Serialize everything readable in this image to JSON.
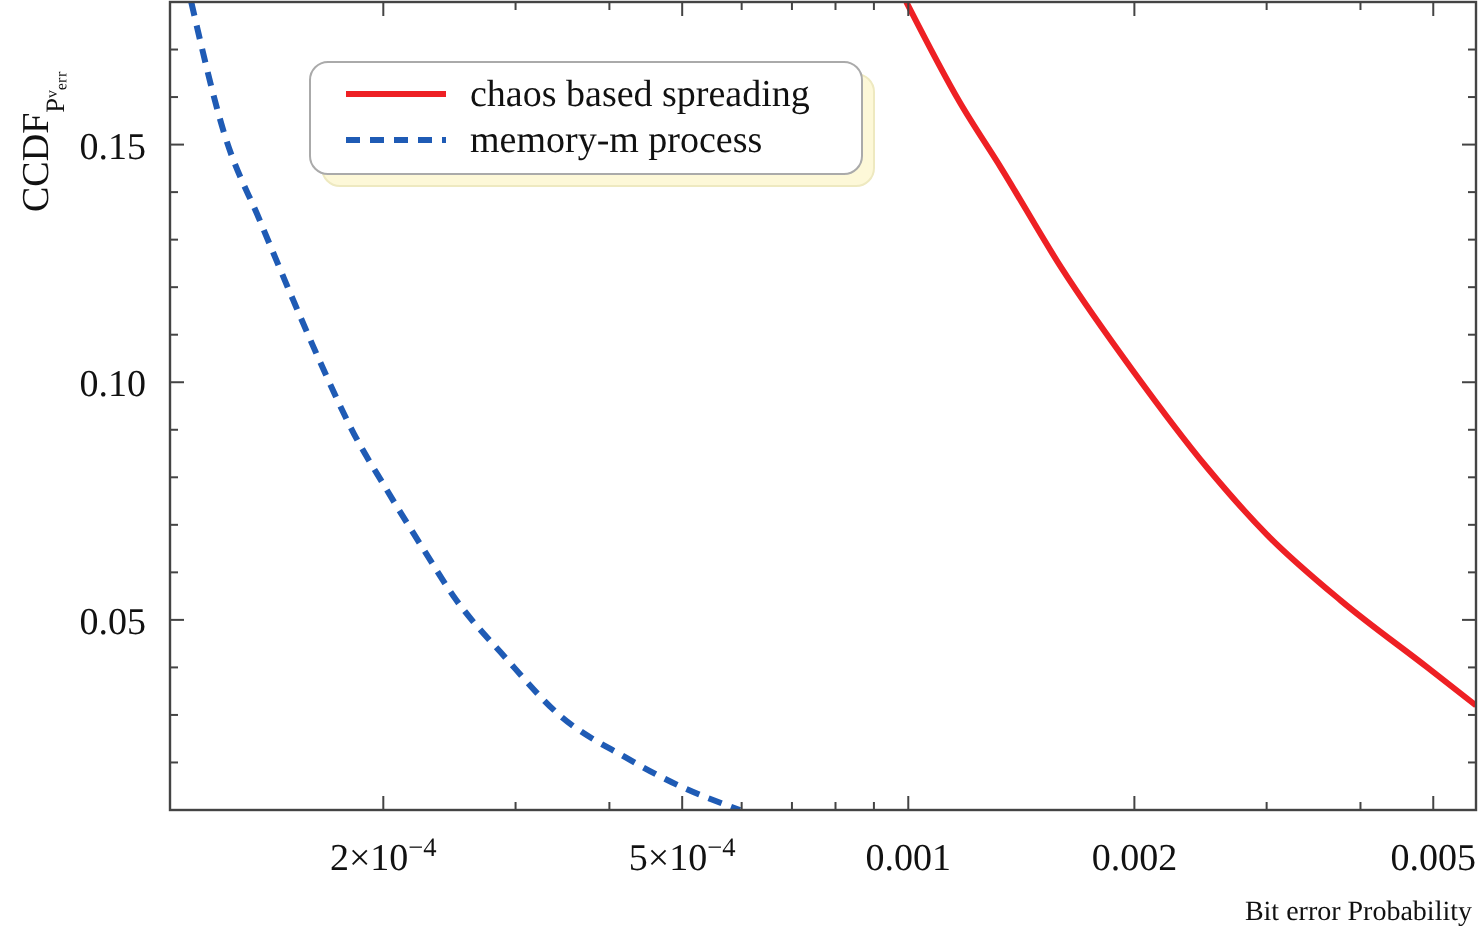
{
  "chart_data": {
    "type": "line",
    "xlabel": "Bit error Probability",
    "ylabel": "CCDF$_{Pᵛₑᵣᵣ}$",
    "log": "x",
    "xlim": [
      0.000104,
      0.0057
    ],
    "ylim": [
      0.01,
      0.18
    ],
    "xticks": [
      {
        "value": 0.0002,
        "label": "2×10$^{−4}$"
      },
      {
        "value": 0.0003,
        "label": null
      },
      {
        "value": 0.0004,
        "label": null
      },
      {
        "value": 0.0005,
        "label": "5×10$^{−4}$"
      },
      {
        "value": 0.0006,
        "label": null
      },
      {
        "value": 0.0007,
        "label": null
      },
      {
        "value": 0.0008,
        "label": null
      },
      {
        "value": 0.0009,
        "label": null
      },
      {
        "value": 0.001,
        "label": "0.001"
      },
      {
        "value": 0.002,
        "label": "0.002"
      },
      {
        "value": 0.003,
        "label": null
      },
      {
        "value": 0.004,
        "label": null
      },
      {
        "value": 0.005,
        "label": "0.005"
      }
    ],
    "yticks": [
      {
        "value": 0.02,
        "label": null
      },
      {
        "value": 0.03,
        "label": null
      },
      {
        "value": 0.04,
        "label": null
      },
      {
        "value": 0.05,
        "label": "0.05"
      },
      {
        "value": 0.06,
        "label": null
      },
      {
        "value": 0.07,
        "label": null
      },
      {
        "value": 0.08,
        "label": null
      },
      {
        "value": 0.09,
        "label": null
      },
      {
        "value": 0.1,
        "label": "0.10"
      },
      {
        "value": 0.11,
        "label": null
      },
      {
        "value": 0.12,
        "label": null
      },
      {
        "value": 0.13,
        "label": null
      },
      {
        "value": 0.14,
        "label": null
      },
      {
        "value": 0.15,
        "label": "0.15"
      },
      {
        "value": 0.16,
        "label": null
      },
      {
        "value": 0.17,
        "label": null
      }
    ],
    "grid": false,
    "legend": "top left",
    "series": [
      {
        "name": "chaos based spreading",
        "color": "#ee2024",
        "line_style": "solid",
        "x": [
          0.000994,
          0.00117,
          0.00133,
          0.0016,
          0.002,
          0.0025,
          0.003,
          0.00377,
          0.00491,
          0.0057
        ],
        "values": [
          0.18,
          0.159,
          0.145,
          0.124,
          0.102,
          0.082,
          0.068,
          0.054,
          0.04,
          0.032
        ]
      },
      {
        "name": "memory-m process",
        "color": "#1f5bb5",
        "line_style": "dashed",
        "x": [
          0.000111,
          0.000123,
          0.000137,
          0.000152,
          0.000164,
          0.000183,
          0.000201,
          0.000228,
          0.000248,
          0.000291,
          0.000343,
          0.000421,
          0.000497,
          0.000597
        ],
        "values": [
          0.18,
          0.152,
          0.134,
          0.117,
          0.105,
          0.089,
          0.078,
          0.064,
          0.055,
          0.042,
          0.03,
          0.021,
          0.015,
          0.01
        ]
      }
    ]
  }
}
